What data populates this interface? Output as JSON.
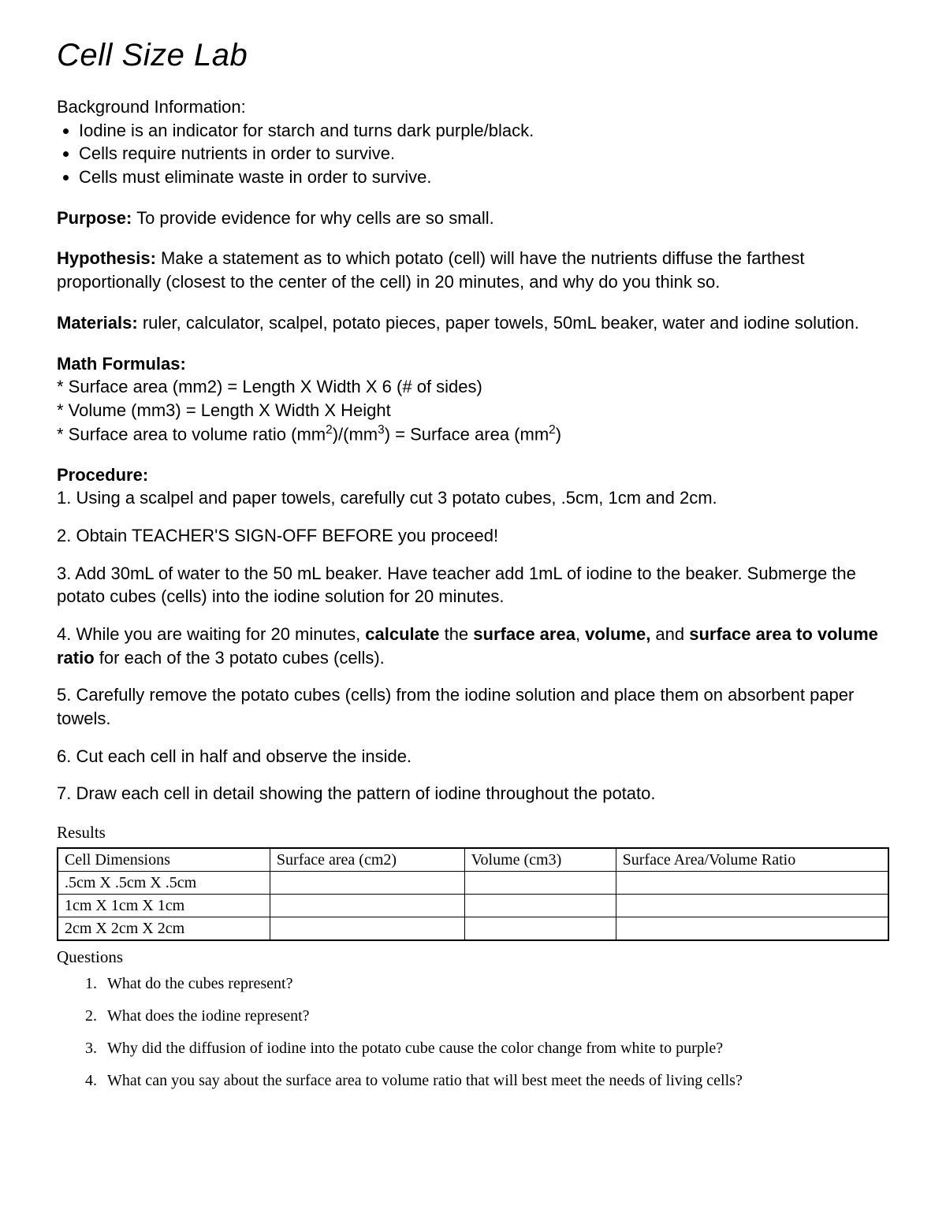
{
  "title": "Cell Size Lab",
  "background": {
    "heading": "Background Information:",
    "items": [
      "Iodine is an indicator for starch and turns dark purple/black.",
      "Cells require nutrients in order to survive.",
      "Cells must eliminate waste in order to survive."
    ]
  },
  "purpose": {
    "label": "Purpose:",
    "text": " To provide evidence for why cells are so small."
  },
  "hypothesis": {
    "label": "Hypothesis:",
    "text": " Make a statement as to which potato (cell) will have the nutrients diffuse the farthest proportionally (closest to the center of the cell) in 20 minutes, and why do you think so."
  },
  "materials": {
    "label": "Materials:",
    "text": " ruler, calculator, scalpel, potato pieces, paper towels, 50mL beaker, water and iodine solution."
  },
  "formulas": {
    "label": "Math Formulas:",
    "lines": [
      "* Surface area (mm2) = Length X Width X 6 (# of sides)",
      "* Volume (mm3) = Length X Width X Height"
    ],
    "line3_prefix": "* Surface area to volume ratio (mm",
    "line3_mid": ")/(mm",
    "line3_after": ") = Surface area (mm",
    "line3_end": ")"
  },
  "procedure": {
    "label": "Procedure:",
    "step1": "1. Using a scalpel and paper towels, carefully cut 3 potato cubes, .5cm, 1cm and 2cm.",
    "step2": "2. Obtain TEACHER'S SIGN-OFF BEFORE you proceed!",
    "step3": "3. Add 30mL of water to the 50 mL beaker. Have teacher add 1mL of iodine to the beaker. Submerge the potato cubes (cells) into the iodine solution for 20 minutes.",
    "step4_a": "4. While you are waiting for 20 minutes, ",
    "step4_b1": "calculate",
    "step4_c": " the ",
    "step4_b2": "surface area",
    "step4_d": ", ",
    "step4_b3": "volume,",
    "step4_e": " and ",
    "step4_b4": "surface area to volume ratio",
    "step4_f": " for each of the 3 potato cubes (cells).",
    "step5": "5. Carefully remove the potato cubes (cells) from the iodine solution and place them on absorbent paper towels.",
    "step6": "6. Cut each cell in half and observe the inside.",
    "step7": "7. Draw each cell in detail showing the pattern of iodine throughout the potato."
  },
  "results": {
    "label": "Results",
    "columns": [
      "Cell Dimensions",
      "Surface area (cm2)",
      "Volume (cm3)",
      "Surface Area/Volume Ratio"
    ],
    "rows": [
      [
        ".5cm X .5cm X .5cm",
        "",
        "",
        ""
      ],
      [
        "1cm X 1cm X 1cm",
        "",
        "",
        ""
      ],
      [
        "2cm X 2cm X 2cm",
        "",
        "",
        ""
      ]
    ]
  },
  "questions": {
    "label": "Questions",
    "items": [
      "What do the cubes represent?",
      "What does the iodine represent?",
      "Why did the diffusion of iodine into the potato cube cause the color change from white to purple?",
      "What can you say about the surface area to volume ratio that will best meet the needs of living cells?"
    ]
  }
}
